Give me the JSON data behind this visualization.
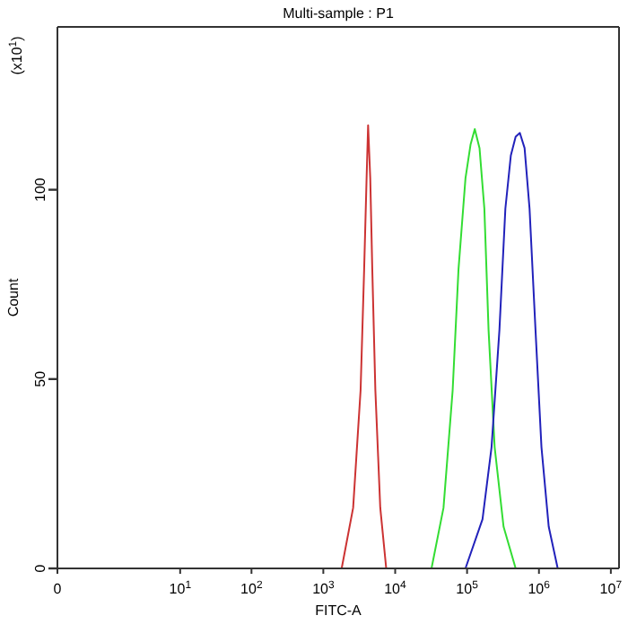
{
  "chart_data": {
    "type": "line",
    "title": "Multi-sample : P1",
    "xlabel": "FITC-A",
    "ylabel": "Count",
    "annotations": [
      "(x10$^{1}$)"
    ],
    "log": "x",
    "xlim": [
      0,
      13000000
    ],
    "ylim": [
      0,
      143
    ],
    "xticks": [
      0,
      {
        "value": 10,
        "label": "10$^{1}$"
      },
      {
        "value": 100,
        "label": "10$^{2}$"
      },
      {
        "value": 1000,
        "label": "10$^{3}$"
      },
      {
        "value": 10000,
        "label": "10$^{4}$"
      },
      {
        "value": 100000,
        "label": "10$^{5}$"
      },
      {
        "value": 1000000,
        "label": "10$^{6}$"
      },
      {
        "value": 10000000,
        "label": "10$^{7}$"
      }
    ],
    "yticks": [
      0,
      50,
      100
    ],
    "series": [
      {
        "color": "#cc3333",
        "x": [
          1800,
          2600,
          3300,
          3700,
          4000,
          4200,
          4500,
          4800,
          5300,
          6200,
          7500
        ],
        "values": [
          0,
          16,
          47,
          79,
          103,
          117,
          103,
          79,
          47,
          16,
          0
        ]
      },
      {
        "color": "#33dd33",
        "x": [
          32000,
          47000,
          63000,
          76000,
          95000,
          112000,
          128000,
          149000,
          174000,
          199000,
          242000,
          322000,
          474000
        ],
        "values": [
          0,
          16,
          47,
          79,
          103,
          112,
          116,
          111,
          95,
          63,
          32,
          11,
          0
        ]
      },
      {
        "color": "#2222bb",
        "x": [
          95000,
          164000,
          219000,
          282000,
          341000,
          406000,
          474000,
          542000,
          631000,
          740000,
          895000,
          1084000,
          1368000,
          1824000
        ],
        "values": [
          0,
          13,
          32,
          63,
          95,
          109,
          114,
          115,
          111,
          95,
          63,
          32,
          11,
          0
        ]
      }
    ]
  }
}
